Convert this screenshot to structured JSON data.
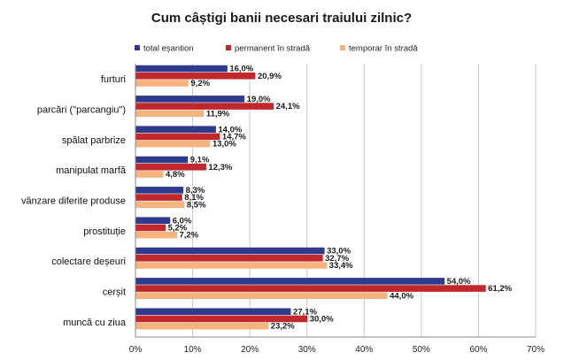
{
  "chart_data": {
    "type": "bar",
    "orientation": "horizontal",
    "title": "Cum câștigi banii necesari traiului zilnic?",
    "categories": [
      "furturi",
      "parcări (\"parcangiu\")",
      "spălat parbrize",
      "manipulat marfă",
      "vânzare diferite produse",
      "prostituție",
      "colectare deșeuri",
      "cerșit",
      "muncă cu ziua"
    ],
    "series": [
      {
        "name": "total eșantion",
        "color": "#2E3B8C",
        "values": [
          16.0,
          19.0,
          14.0,
          9.1,
          8.3,
          6.0,
          33.0,
          54.0,
          27.1
        ],
        "labels": [
          "16,0%",
          "19,0%",
          "14,0%",
          "9,1%",
          "8,3%",
          "6,0%",
          "33,0%",
          "54,0%",
          "27,1%"
        ]
      },
      {
        "name": "permanent în stradă",
        "color": "#C0282E",
        "values": [
          20.9,
          24.1,
          14.7,
          12.3,
          8.1,
          5.2,
          32.7,
          61.2,
          30.0
        ],
        "labels": [
          "20,9%",
          "24,1%",
          "14,7%",
          "12,3%",
          "8,1%",
          "5,2%",
          "32,7%",
          "61,2%",
          "30,0%"
        ]
      },
      {
        "name": "temporar în stradă",
        "color": "#F7B37E",
        "values": [
          9.2,
          11.9,
          13.0,
          4.8,
          8.5,
          7.2,
          33.4,
          44.0,
          23.2
        ],
        "labels": [
          "9,2%",
          "11,9%",
          "13,0%",
          "4,8%",
          "8,5%",
          "7,2%",
          "33,4%",
          "44,0%",
          "23,2%"
        ]
      }
    ],
    "xlim": [
      0,
      70
    ],
    "ticks": [
      0,
      10,
      20,
      30,
      40,
      50,
      60,
      70
    ],
    "tick_labels": [
      "0%",
      "10%",
      "20%",
      "30%",
      "40%",
      "50%",
      "60%",
      "70%"
    ],
    "xlabel": "",
    "ylabel": "",
    "legend_position": "top",
    "grid": true
  }
}
